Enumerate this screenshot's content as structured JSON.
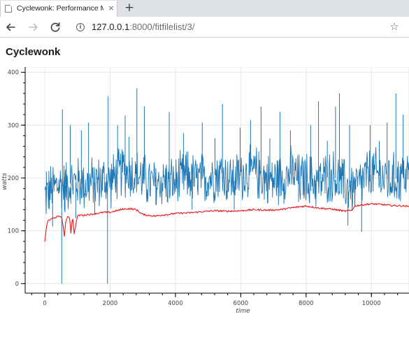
{
  "browser": {
    "tab_title": "Cyclewonk: Performance Manage",
    "close_glyph": "×",
    "new_tab_glyph": "+",
    "url_host": "127.0.0.1",
    "url_path": ":8000/fitfilelist/3/",
    "info_glyph": "i",
    "star_glyph": "☆"
  },
  "page": {
    "heading": "Cyclewonk"
  },
  "chart_data": {
    "type": "line",
    "title": "",
    "xlabel": "time",
    "ylabel": "watts",
    "xlim": [
      -600,
      11150
    ],
    "ylim": [
      -18,
      410
    ],
    "x_ticks": [
      0,
      2000,
      4000,
      6000,
      8000,
      10000
    ],
    "x_tick_labels": [
      "0",
      "2000",
      "4000",
      "6000",
      "8000",
      "10000"
    ],
    "y_ticks": [
      0,
      100,
      200,
      300,
      400
    ],
    "y_tick_labels": [
      "0",
      "100",
      "200",
      "300",
      "400"
    ],
    "grid": true,
    "legend": "none",
    "series": [
      {
        "color": "#1f77b4",
        "x": [
          0,
          150,
          300,
          450,
          600,
          800,
          1000,
          1200,
          1400,
          1600,
          1800,
          2000,
          2200,
          2400,
          2600,
          2800,
          3000,
          3200,
          3400,
          3600,
          3800,
          4000,
          4200,
          4400,
          4600,
          4800,
          5000,
          5200,
          5400,
          5600,
          5800,
          6000,
          6200,
          6400,
          6600,
          6800,
          7000,
          7200,
          7400,
          7600,
          7800,
          8000,
          8200,
          8400,
          8600,
          8800,
          9000,
          9200,
          9400,
          9600,
          9800,
          10000,
          10200,
          10400,
          10600,
          10800,
          11000
        ],
        "values": [
          165,
          175,
          182,
          188,
          185,
          190,
          192,
          187,
          190,
          192,
          195,
          193,
          205,
          215,
          210,
          205,
          200,
          190,
          188,
          195,
          192,
          190,
          200,
          205,
          195,
          198,
          200,
          205,
          210,
          200,
          195,
          205,
          210,
          212,
          205,
          198,
          195,
          200,
          205,
          210,
          195,
          200,
          195,
          190,
          200,
          205,
          195,
          185,
          180,
          185,
          200,
          210,
          205,
          200,
          195,
          200,
          205
        ],
        "spike_x": [
          50,
          240,
          520,
          540,
          620,
          780,
          950,
          1120,
          1340,
          1530,
          1920,
          1940,
          2230,
          2460,
          2580,
          2820,
          3050,
          3400,
          3810,
          4250,
          4510,
          4820,
          5210,
          5440,
          5800,
          5980,
          6300,
          6620,
          6890,
          7200,
          7520,
          7770,
          8140,
          8380,
          8650,
          8900,
          9020,
          9280,
          9330,
          9700,
          9960,
          10240,
          10480,
          10750,
          10970
        ],
        "spike_values": [
          212,
          108,
          0,
          330,
          135,
          300,
          124,
          290,
          305,
          132,
          0,
          355,
          300,
          318,
          278,
          370,
          335,
          150,
          325,
          285,
          140,
          305,
          275,
          340,
          140,
          295,
          310,
          335,
          275,
          325,
          290,
          155,
          300,
          345,
          270,
          335,
          360,
          110,
          300,
          98,
          300,
          270,
          305,
          360,
          320
        ]
      },
      {
        "color": "#e8191b",
        "x": [
          0,
          30,
          70,
          120,
          200,
          300,
          420,
          500,
          560,
          600,
          640,
          700,
          760,
          800,
          850,
          900,
          1000,
          1100,
          1200,
          1300,
          1400,
          1600,
          1800,
          2000,
          2200,
          2400,
          2600,
          2800,
          3000,
          3200,
          3400,
          3600,
          3800,
          4000,
          4400,
          4800,
          5200,
          5600,
          6000,
          6400,
          6800,
          7200,
          7600,
          8000,
          8400,
          8800,
          9200,
          9400,
          9500,
          9700,
          10000,
          10300,
          10600,
          11000,
          11150
        ],
        "values": [
          80,
          95,
          115,
          120,
          122,
          125,
          127,
          128,
          110,
          90,
          115,
          128,
          125,
          96,
          127,
          95,
          128,
          130,
          129,
          131,
          131,
          133,
          135,
          135,
          138,
          141,
          142,
          140,
          131,
          129,
          128,
          130,
          131,
          133,
          134,
          136,
          138,
          137,
          138,
          140,
          139,
          140,
          144,
          147,
          143,
          141,
          137,
          139,
          147,
          149,
          151,
          150,
          148,
          147,
          146
        ]
      }
    ]
  }
}
